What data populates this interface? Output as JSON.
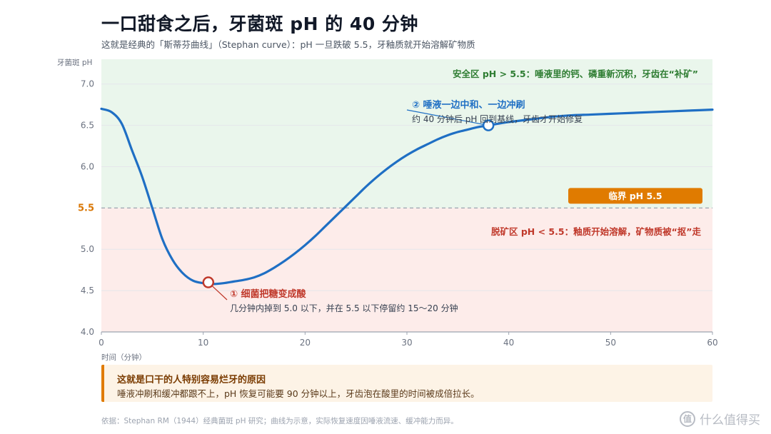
{
  "header": {
    "title": "一口甜食之后，牙菌斑 pH 的 40 分钟",
    "subtitle": "这就是经典的「斯蒂芬曲线」（Stephan curve）：pH 一旦跌破 5.5，牙釉质就开始溶解矿物质"
  },
  "chart_data": {
    "type": "line",
    "xlabel": "时间（分钟）",
    "ylabel": "牙菌斑 pH",
    "xlim": [
      0,
      60
    ],
    "ylim": [
      4.0,
      7.3
    ],
    "xticks": [
      0,
      10,
      20,
      30,
      40,
      50,
      60
    ],
    "yticks": [
      4.0,
      4.5,
      5.0,
      5.5,
      6.0,
      6.5,
      7.0
    ],
    "grid": true,
    "critical_value": 5.5,
    "critical_tick_label": "5.5",
    "series": [
      {
        "x": [
          0,
          1,
          2,
          3,
          4,
          5,
          6,
          7,
          8,
          9,
          10,
          11,
          12,
          13,
          14,
          15,
          16,
          17,
          18,
          19,
          20,
          21,
          22,
          23,
          24,
          25,
          26,
          27,
          28,
          29,
          30,
          31,
          32,
          33,
          34,
          35,
          36,
          37,
          38,
          40,
          42,
          44,
          46,
          48,
          50,
          52,
          54,
          56,
          58,
          60
        ],
        "y": [
          6.7,
          6.66,
          6.52,
          6.2,
          5.88,
          5.5,
          5.12,
          4.87,
          4.71,
          4.62,
          4.59,
          4.58,
          4.59,
          4.61,
          4.63,
          4.66,
          4.71,
          4.78,
          4.86,
          4.95,
          5.05,
          5.16,
          5.28,
          5.4,
          5.52,
          5.64,
          5.76,
          5.87,
          5.97,
          6.06,
          6.14,
          6.21,
          6.27,
          6.33,
          6.38,
          6.42,
          6.45,
          6.48,
          6.5,
          6.54,
          6.57,
          6.6,
          6.62,
          6.63,
          6.64,
          6.65,
          6.66,
          6.67,
          6.68,
          6.69
        ]
      }
    ],
    "color": "#1f6fc4",
    "zones": {
      "safe_label": "安全区 pH > 5.5：唾液里的钙、磷重新沉积，牙齿在“补矿”",
      "safe_color": "#eaf6ec",
      "demin_label": "脱矿区 pH < 5.5：釉质开始溶解，矿物质被“抠”走",
      "demin_color": "#fdecea"
    },
    "critical_badge": "临界 pH 5.5",
    "annotations": [
      {
        "x": 10.5,
        "y": 4.6,
        "title": "① 细菌把糖变成酸",
        "text": "几分钟内掉到 5.0 以下，并在 5.5 以下停留约 15～20 分钟",
        "color": "#c0392b"
      },
      {
        "x": 38,
        "y": 6.5,
        "title": "② 唾液一边中和、一边冲刷",
        "text": "约 40 分钟后 pH 回到基线，牙齿才开始修复",
        "color": "#1f6fc4"
      }
    ]
  },
  "callout": {
    "title": "这就是口干的人特别容易烂牙的原因",
    "body": "唾液冲刷和缓冲都跟不上，pH 恢复可能要 90 分钟以上，牙齿泡在酸里的时间被成倍拉长。"
  },
  "footer": {
    "source": "依据：Stephan RM（1944）经典菌斑 pH 研究；曲线为示意，实际恢复速度因唾液流速、缓冲能力而异。",
    "watermark": "什么值得买",
    "watermark_icon": "值"
  }
}
